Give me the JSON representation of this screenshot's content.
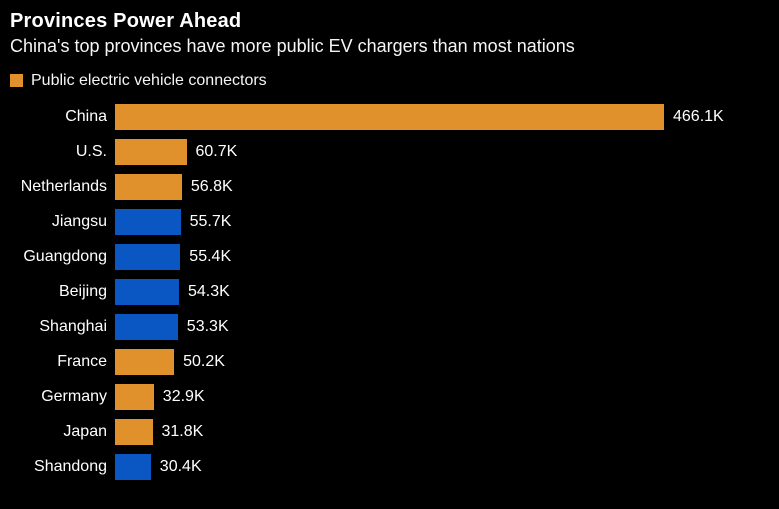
{
  "title": "Provinces Power Ahead",
  "subtitle": "China's top provinces have more public EV chargers than most nations",
  "legend": {
    "label": "Public electric vehicle connectors"
  },
  "colors": {
    "background": "#000000",
    "text": "#FFFFFF",
    "country_orange": "#E1912C",
    "province_blue": "#0A57C4"
  },
  "chart_data": {
    "type": "bar",
    "orientation": "horizontal",
    "title": "Provinces Power Ahead",
    "subtitle": "China's top provinces have more public EV chargers than most nations",
    "legend_entries": [
      "Public electric vehicle connectors"
    ],
    "unit": "thousand connectors",
    "value_axis_max": 466.1,
    "grid": false,
    "categories": [
      "China",
      "U.S.",
      "Netherlands",
      "Jiangsu",
      "Guangdong",
      "Beijing",
      "Shanghai",
      "France",
      "Germany",
      "Japan",
      "Shandong"
    ],
    "values": [
      466.1,
      60.7,
      56.8,
      55.7,
      55.4,
      54.3,
      53.3,
      50.2,
      32.9,
      31.8,
      30.4
    ],
    "display_values": [
      "466.1K",
      "60.7K",
      "56.8K",
      "55.7K",
      "55.4K",
      "54.3K",
      "53.3K",
      "50.2K",
      "32.9K",
      "31.8K",
      "30.4K"
    ],
    "bar_color_keys": [
      "country_orange",
      "country_orange",
      "country_orange",
      "province_blue",
      "province_blue",
      "province_blue",
      "province_blue",
      "country_orange",
      "country_orange",
      "country_orange",
      "province_blue"
    ]
  }
}
